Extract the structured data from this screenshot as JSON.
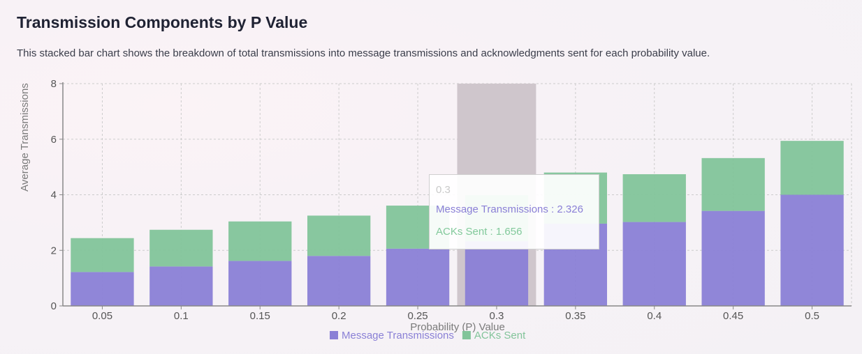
{
  "header": {
    "title": "Transmission Components by P Value",
    "description": "This stacked bar chart shows the breakdown of total transmissions into message transmissions and acknowledgments sent for each probability value."
  },
  "tooltip": {
    "label": "0.3",
    "rows": [
      {
        "text": "Message Transmissions : 2.326"
      },
      {
        "text": "ACKs Sent : 1.656"
      }
    ]
  },
  "colors": {
    "messages": "#8a80d6",
    "acks": "#82c49a",
    "highlight": "#cfc6cc",
    "grid": "#cccccc",
    "axis": "#888888"
  },
  "chart_data": {
    "type": "bar",
    "stacked": true,
    "categories": [
      "0.05",
      "0.1",
      "0.15",
      "0.2",
      "0.25",
      "0.3",
      "0.35",
      "0.4",
      "0.45",
      "0.5"
    ],
    "series": [
      {
        "name": "Message Transmissions",
        "values": [
          1.22,
          1.42,
          1.62,
          1.8,
          2.06,
          2.326,
          2.96,
          3.02,
          3.42,
          4.0
        ]
      },
      {
        "name": "ACKs Sent",
        "values": [
          1.22,
          1.32,
          1.42,
          1.45,
          1.55,
          1.656,
          1.84,
          1.72,
          1.9,
          1.94
        ]
      }
    ],
    "xlabel": "Probability (P) Value",
    "ylabel": "Average Transmissions",
    "ylim": [
      0,
      8
    ],
    "yticks": [
      0,
      2,
      4,
      6,
      8
    ],
    "grid": true,
    "legend": "bottom",
    "highlighted_category": "0.3"
  }
}
